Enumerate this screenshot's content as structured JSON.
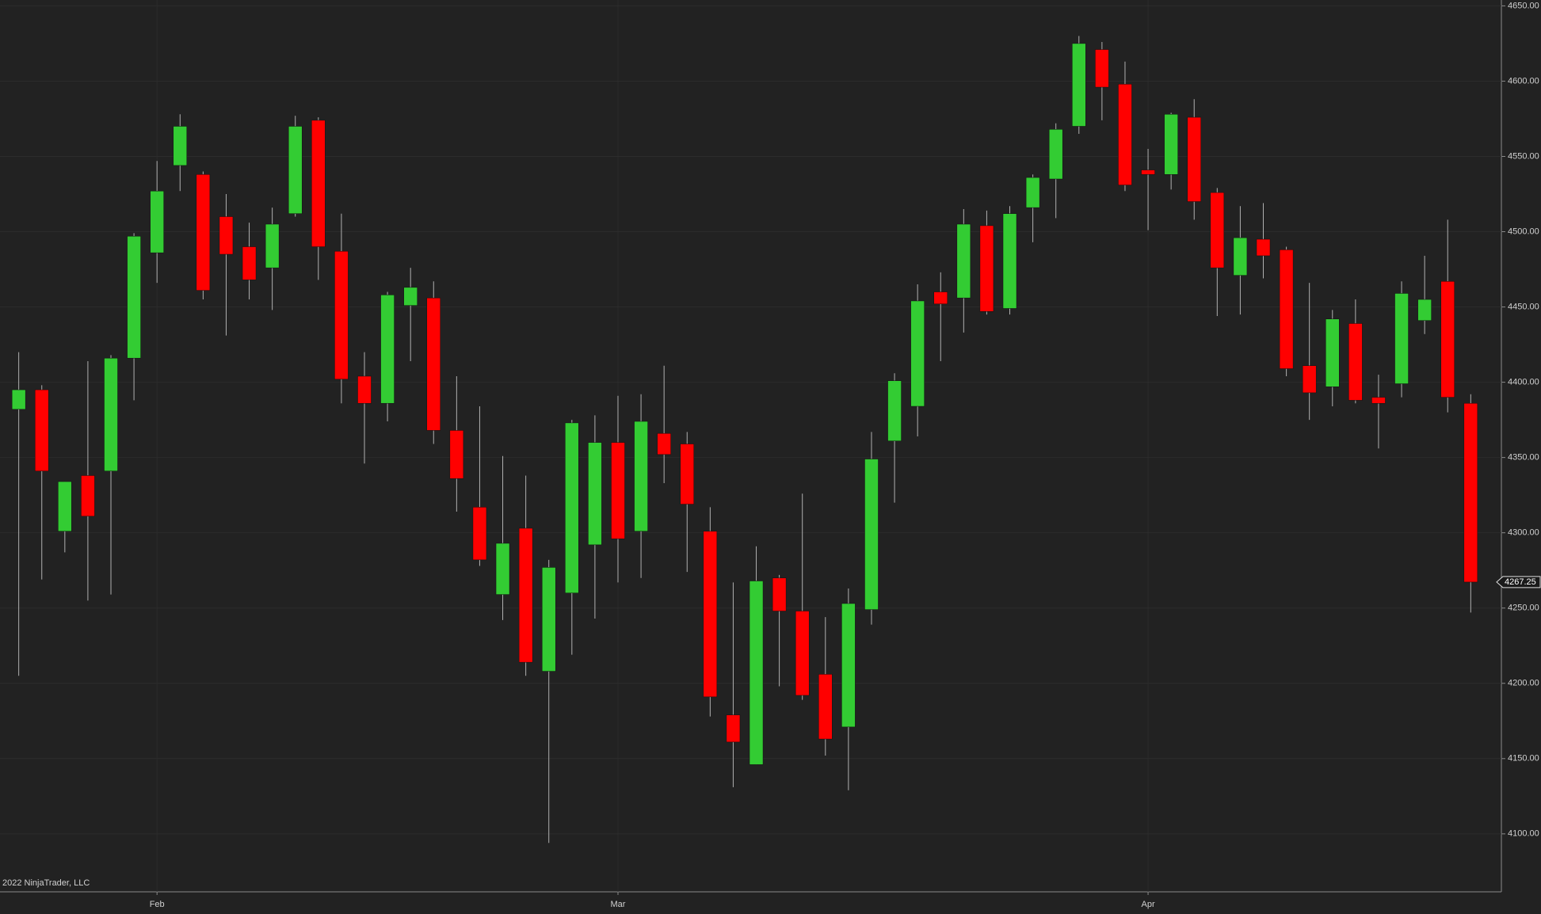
{
  "chart_data": {
    "type": "candlestick",
    "watermark": "2022 NinjaTrader, LLC",
    "categories": [
      null,
      null,
      null,
      null,
      null,
      null,
      "Feb",
      null,
      null,
      null,
      null,
      null,
      null,
      null,
      null,
      null,
      null,
      null,
      null,
      null,
      null,
      null,
      null,
      null,
      null,
      null,
      "Mar",
      null,
      null,
      null,
      null,
      null,
      null,
      null,
      null,
      null,
      null,
      null,
      null,
      null,
      null,
      null,
      null,
      null,
      null,
      null,
      null,
      null,
      null,
      "Apr",
      null,
      null,
      null,
      null,
      null,
      null,
      null,
      null,
      null,
      null,
      null,
      null,
      null,
      null
    ],
    "open": [
      4382,
      4395,
      4301,
      4338,
      4341,
      4416,
      4486,
      4544,
      4538,
      4510,
      4490,
      4476,
      4512,
      4574,
      4487,
      4404,
      4386,
      4451,
      4456,
      4368,
      4317,
      4259,
      4303,
      4208,
      4260,
      4292,
      4360,
      4301,
      4366,
      4359,
      4301,
      4179,
      4146,
      4270,
      4248,
      4206,
      4171,
      4249,
      4361,
      4384,
      4460,
      4456,
      4504,
      4449,
      4516,
      4535,
      4570,
      4621,
      4598,
      4541,
      4538,
      4576,
      4526,
      4471,
      4495,
      4488,
      4411,
      4397,
      4439,
      4390,
      4399,
      4441,
      4467,
      4386
    ],
    "high": [
      4420,
      4398,
      4334,
      4414,
      4418,
      4499,
      4547,
      4578,
      4540,
      4525,
      4506,
      4516,
      4577,
      4576,
      4512,
      4420,
      4460,
      4476,
      4467,
      4404,
      4384,
      4351,
      4338,
      4282,
      4375,
      4378,
      4391,
      4392,
      4411,
      4367,
      4317,
      4267,
      4291,
      4272,
      4326,
      4244,
      4263,
      4367,
      4406,
      4465,
      4473,
      4515,
      4514,
      4517,
      4538,
      4572,
      4630,
      4626,
      4613,
      4555,
      4579,
      4588,
      4529,
      4517,
      4519,
      4490,
      4466,
      4448,
      4455,
      4405,
      4467,
      4484,
      4508,
      4392
    ],
    "low": [
      4205,
      4269,
      4287,
      4255,
      4259,
      4388,
      4466,
      4527,
      4455,
      4431,
      4455,
      4448,
      4510,
      4468,
      4386,
      4346,
      4374,
      4414,
      4359,
      4314,
      4278,
      4242,
      4205,
      4094,
      4219,
      4243,
      4267,
      4270,
      4333,
      4274,
      4178,
      4131,
      4146,
      4198,
      4189,
      4152,
      4129,
      4239,
      4320,
      4364,
      4414,
      4433,
      4445,
      4445,
      4493,
      4509,
      4565,
      4574,
      4527,
      4501,
      4528,
      4508,
      4444,
      4445,
      4469,
      4404,
      4375,
      4384,
      4386,
      4356,
      4390,
      4432,
      4380,
      4247
    ],
    "close": [
      4395,
      4341,
      4334,
      4311,
      4416,
      4497,
      4527,
      4570,
      4461,
      4485,
      4468,
      4505,
      4570,
      4490,
      4402,
      4386,
      4458,
      4463,
      4368,
      4336,
      4282,
      4293,
      4214,
      4277,
      4373,
      4360,
      4296,
      4374,
      4352,
      4319,
      4191,
      4161,
      4268,
      4248,
      4192,
      4163,
      4253,
      4349,
      4401,
      4454,
      4452,
      4505,
      4447,
      4512,
      4536,
      4568,
      4625,
      4596,
      4531,
      4538,
      4578,
      4520,
      4476,
      4496,
      4484,
      4409,
      4393,
      4442,
      4388,
      4386,
      4459,
      4455,
      4390,
      4267.25
    ],
    "up_color": "#33cc33",
    "down_color": "#ff0000",
    "ylim": [
      4061.5,
      4653.9
    ],
    "yticks": [
      {
        "value": 4100,
        "label": "4100.00"
      },
      {
        "value": 4150,
        "label": "4150.00"
      },
      {
        "value": 4200,
        "label": "4200.00"
      },
      {
        "value": 4250,
        "label": "4250.00"
      },
      {
        "value": 4300,
        "label": "4300.00"
      },
      {
        "value": 4350,
        "label": "4350.00"
      },
      {
        "value": 4400,
        "label": "4400.00"
      },
      {
        "value": 4450,
        "label": "4450.00"
      },
      {
        "value": 4500,
        "label": "4500.00"
      },
      {
        "value": 4550,
        "label": "4550.00"
      },
      {
        "value": 4600,
        "label": "4600.00"
      },
      {
        "value": 4650,
        "label": "4650.00"
      }
    ],
    "grid": true
  }
}
